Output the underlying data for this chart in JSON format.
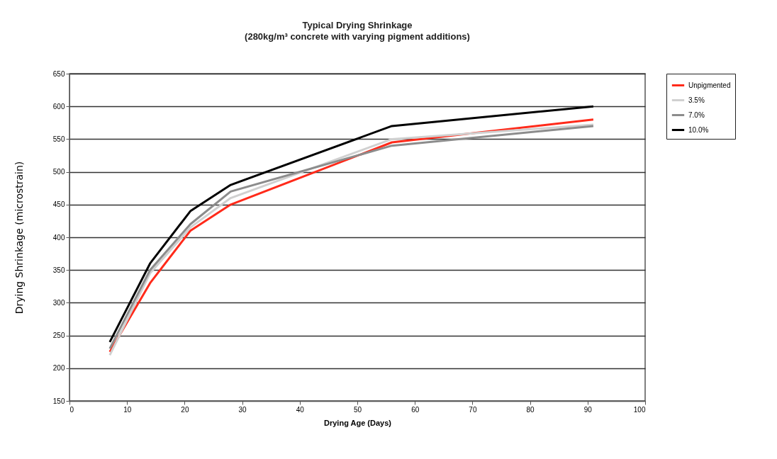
{
  "chart_data": {
    "type": "line",
    "title": "Typical Drying Shrinkage",
    "subtitle": "(280kg/m³ concrete with varying pigment additions)",
    "xlabel": "Drying Age (Days)",
    "ylabel": "Drying Shrinkage (microstrain)",
    "x": [
      7,
      14,
      21,
      28,
      56,
      91
    ],
    "series": [
      {
        "name": "Unpigmented",
        "color": "#ff2a1a",
        "values": [
          225,
          330,
          410,
          450,
          545,
          580
        ]
      },
      {
        "name": "3.5%",
        "color": "#d0d0d0",
        "values": [
          220,
          345,
          415,
          460,
          550,
          572
        ]
      },
      {
        "name": "7.0%",
        "color": "#8c8c8c",
        "values": [
          230,
          350,
          420,
          470,
          540,
          570
        ]
      },
      {
        "name": "10.0%",
        "color": "#000000",
        "values": [
          240,
          360,
          440,
          480,
          570,
          600
        ]
      }
    ],
    "xlim": [
      0,
      100
    ],
    "xticks": [
      0,
      10,
      20,
      30,
      40,
      50,
      60,
      70,
      80,
      90,
      100
    ],
    "ylim": [
      150,
      650
    ],
    "yticks": [
      150,
      200,
      250,
      300,
      350,
      400,
      450,
      500,
      550,
      600,
      650
    ],
    "grid": "y",
    "legend": "right",
    "marker": "none",
    "line_style": "solid"
  }
}
